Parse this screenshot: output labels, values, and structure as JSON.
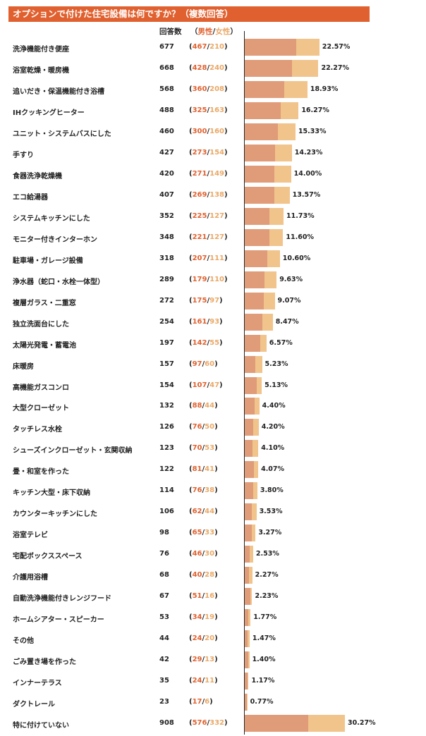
{
  "title": "オプションで付けた住宅設備は何ですか？（複数回答）",
  "header": {
    "count_label": "回答数",
    "split_open": "（",
    "male_label": "男性",
    "slash": "/",
    "female_label": "女性",
    "split_close": "）"
  },
  "colors": {
    "male": "#e09b78",
    "female": "#f1c48c",
    "accent": "#e0612f"
  },
  "chart_data": {
    "type": "bar",
    "orientation": "horizontal",
    "stacked": true,
    "categories": [
      "洗浄機能付き便座",
      "浴室乾燥・暖房機",
      "追いだき・保温機能付き浴槽",
      "IHクッキングヒーター",
      "ユニット・システムバスにした",
      "手すり",
      "食器洗浄乾燥機",
      "エコ給湯器",
      "システムキッチンにした",
      "モニター付きインターホン",
      "駐車場・ガレージ設備",
      "浄水器（蛇口・水栓一体型）",
      "複層ガラス・二重窓",
      "独立洗面台にした",
      "太陽光発電・蓄電池",
      "床暖房",
      "高機能ガスコンロ",
      "大型クローゼット",
      "タッチレス水栓",
      "シューズインクローゼット・玄関収納",
      "畳・和室を作った",
      "キッチン大型・床下収納",
      "カウンターキッチンにした",
      "浴室テレビ",
      "宅配ボックススペース",
      "介護用浴槽",
      "自動洗浄機能付きレンジフード",
      "ホームシアター・スピーカー",
      "その他",
      "ごみ置き場を作った",
      "インナーテラス",
      "ダクトレール",
      "特に付けていない"
    ],
    "totals": [
      677,
      668,
      568,
      488,
      460,
      427,
      420,
      407,
      352,
      348,
      318,
      289,
      272,
      254,
      197,
      157,
      154,
      132,
      126,
      123,
      122,
      114,
      106,
      98,
      76,
      68,
      67,
      53,
      44,
      42,
      35,
      23,
      908
    ],
    "series": [
      {
        "name": "男性",
        "values": [
          467,
          428,
          360,
          325,
          300,
          273,
          271,
          269,
          225,
          221,
          207,
          179,
          175,
          161,
          142,
          97,
          107,
          88,
          76,
          70,
          81,
          76,
          62,
          65,
          46,
          40,
          51,
          34,
          24,
          29,
          24,
          17,
          576
        ]
      },
      {
        "name": "女性",
        "values": [
          210,
          240,
          208,
          163,
          160,
          154,
          149,
          138,
          127,
          127,
          111,
          110,
          97,
          93,
          55,
          60,
          47,
          44,
          50,
          53,
          41,
          38,
          44,
          33,
          30,
          28,
          16,
          19,
          20,
          13,
          11,
          6,
          332
        ]
      }
    ],
    "percentages": [
      "22.57%",
      "22.27%",
      "18.93%",
      "16.27%",
      "15.33%",
      "14.23%",
      "14.00%",
      "13.57%",
      "11.73%",
      "11.60%",
      "10.60%",
      "9.63%",
      "9.07%",
      "8.47%",
      "6.57%",
      "5.23%",
      "5.13%",
      "4.40%",
      "4.20%",
      "4.10%",
      "4.07%",
      "3.80%",
      "3.53%",
      "3.27%",
      "2.53%",
      "2.27%",
      "2.23%",
      "1.77%",
      "1.47%",
      "1.40%",
      "1.17%",
      "0.77%",
      "30.27%"
    ],
    "xlim": [
      0,
      908
    ]
  }
}
